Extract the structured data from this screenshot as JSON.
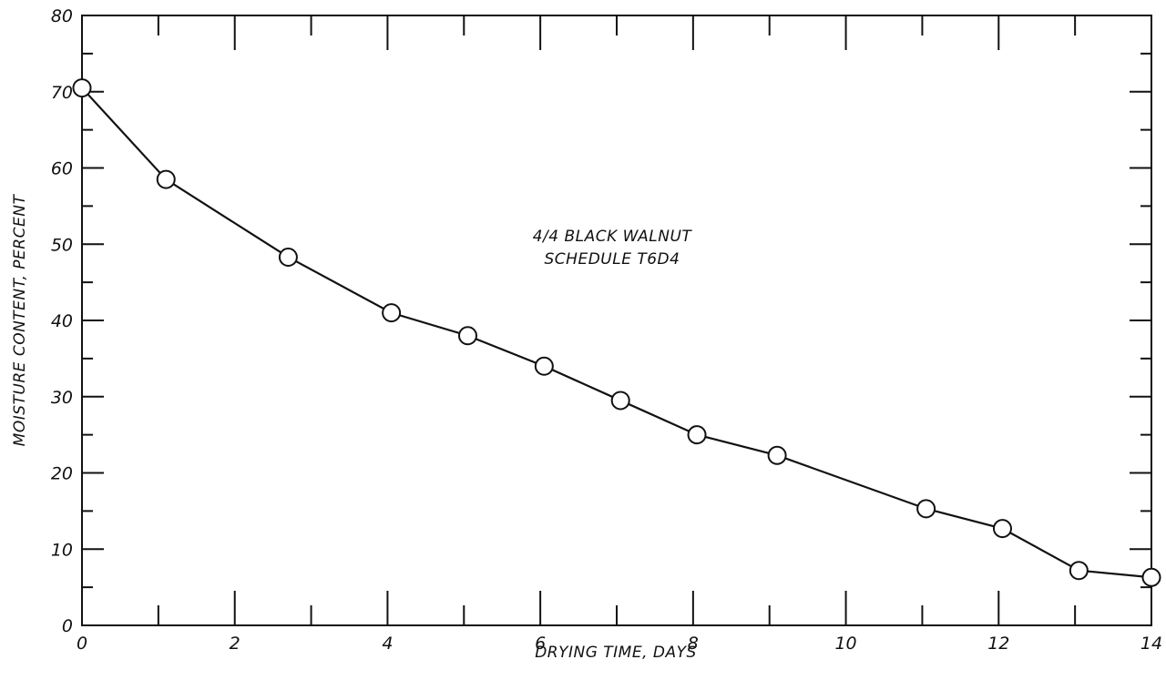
{
  "chart_data": {
    "type": "line",
    "title": "",
    "annotation_lines": [
      "4/4 BLACK WALNUT",
      "SCHEDULE T6D4"
    ],
    "xlabel": "DRYING TIME, DAYS",
    "ylabel": "MOISTURE CONTENT, PERCENT",
    "xlim": [
      0,
      14
    ],
    "ylim": [
      0,
      80
    ],
    "x_ticks": [
      0,
      2,
      4,
      6,
      8,
      10,
      12,
      14
    ],
    "y_ticks": [
      0,
      10,
      20,
      30,
      40,
      50,
      60,
      70,
      80
    ],
    "x_tick_labels": [
      "0",
      "2",
      "4",
      "6",
      "8",
      "10",
      "12",
      "14"
    ],
    "y_tick_labels": [
      "0",
      "10",
      "20",
      "30",
      "40",
      "50",
      "60",
      "70",
      "80"
    ],
    "grid": false,
    "marker": "open-circle",
    "series": [
      {
        "x": [
          0.0,
          1.1,
          2.7,
          4.05,
          5.05,
          6.05,
          7.05,
          8.05,
          9.1,
          11.05,
          12.05,
          13.05,
          14.0
        ],
        "y": [
          70.5,
          58.5,
          48.3,
          41.0,
          38.0,
          34.0,
          29.5,
          25.0,
          22.3,
          15.3,
          12.7,
          7.2,
          6.3
        ]
      }
    ],
    "colors": {
      "line": "#111111",
      "marker_fill": "#ffffff",
      "frame": "#111111"
    }
  }
}
